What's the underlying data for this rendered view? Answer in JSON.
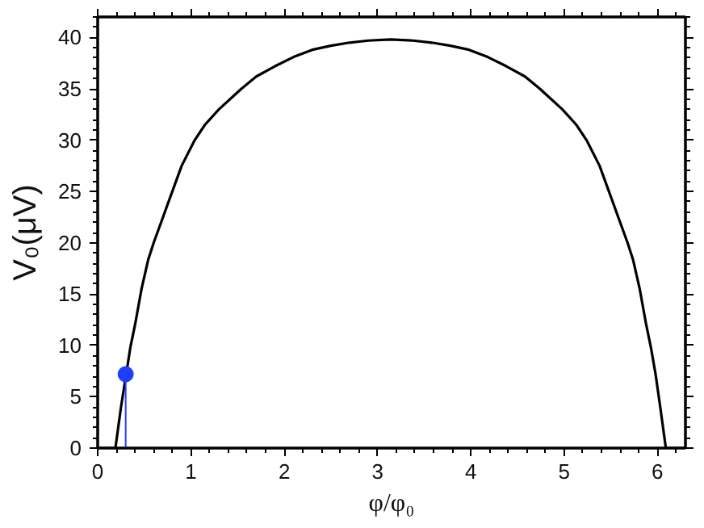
{
  "chart_data": {
    "type": "line",
    "xlabel": "φ/φ₀",
    "ylabel": "V₀(μV)",
    "xlim": [
      0,
      6.3
    ],
    "ylim": [
      0,
      42
    ],
    "xticks": [
      0,
      1,
      2,
      3,
      4,
      5,
      6
    ],
    "yticks": [
      0,
      5,
      10,
      15,
      20,
      25,
      30,
      35,
      40
    ],
    "grid": false,
    "series": [
      {
        "color": "#000000",
        "x": [
          0,
          0.19,
          0.25,
          0.35,
          0.4,
          0.47,
          0.54,
          0.6,
          0.7,
          0.8,
          0.9,
          1.04,
          1.15,
          1.3,
          1.54,
          1.7,
          1.9,
          2.1,
          2.3,
          2.5,
          2.7,
          2.9,
          3.14,
          3.38,
          3.58,
          3.78,
          3.98,
          4.18,
          4.38,
          4.58,
          4.74,
          4.98,
          5.13,
          5.24,
          5.38,
          5.48,
          5.58,
          5.68,
          5.74,
          5.81,
          5.88,
          5.93,
          5.98,
          6.03,
          6.09,
          6.3
        ],
        "values": [
          0,
          0,
          4,
          9.8,
          12,
          15.5,
          18.3,
          20,
          22.5,
          25,
          27.5,
          30,
          31.5,
          33,
          35,
          36.2,
          37.2,
          38.1,
          38.8,
          39.2,
          39.5,
          39.7,
          39.8,
          39.7,
          39.5,
          39.2,
          38.8,
          38.1,
          37.2,
          36.2,
          35,
          33,
          31.5,
          30,
          27.5,
          25,
          22.5,
          20,
          18.3,
          15.5,
          12,
          9.8,
          7.2,
          4,
          0,
          0
        ]
      },
      {
        "type": "lollipop",
        "color": "#1f3fff",
        "x": [
          0.3
        ],
        "values": [
          7.2
        ]
      }
    ]
  }
}
